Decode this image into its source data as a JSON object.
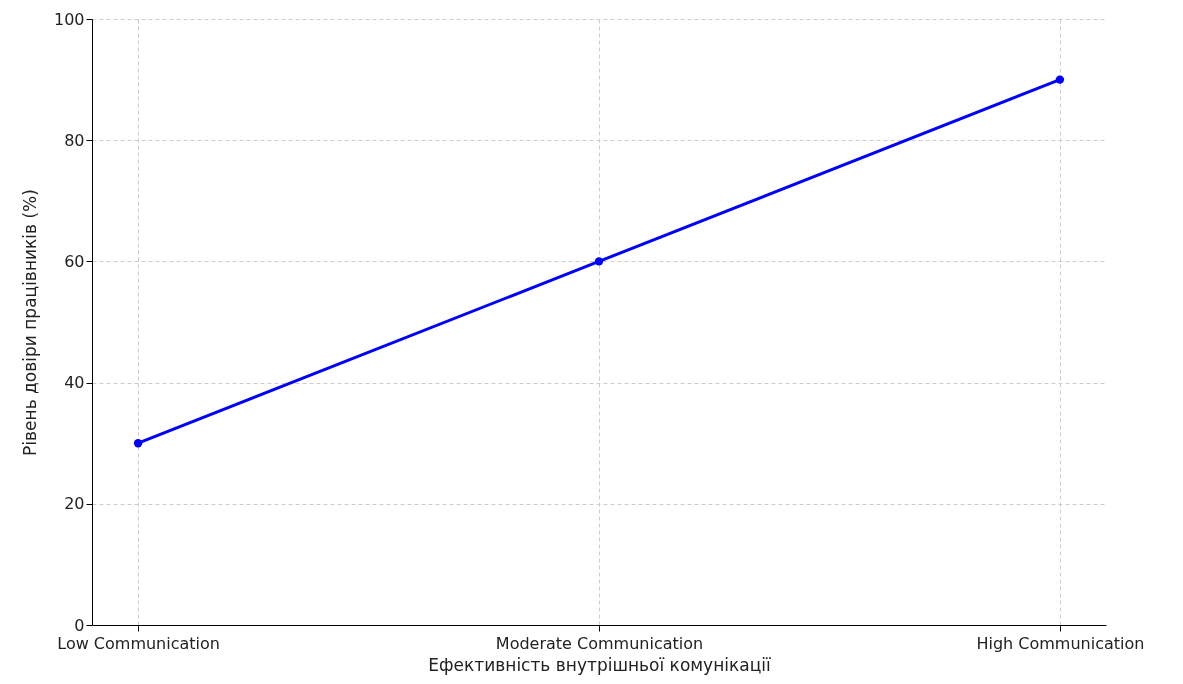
{
  "chart_data": {
    "type": "line",
    "xlabel": "Ефективність внутрішньої комунікації",
    "ylabel": "Рівень довіри працівників (%)",
    "categories": [
      "Low Communication",
      "Moderate Communication",
      "High Communication"
    ],
    "series": [
      {
        "color": "#0000ff",
        "values": [
          30,
          60,
          90
        ]
      }
    ],
    "ylim": [
      0,
      100
    ],
    "yticks": [
      0,
      20,
      40,
      60,
      80,
      100
    ],
    "grid": true,
    "marker": "circle",
    "line_style": "solid"
  }
}
